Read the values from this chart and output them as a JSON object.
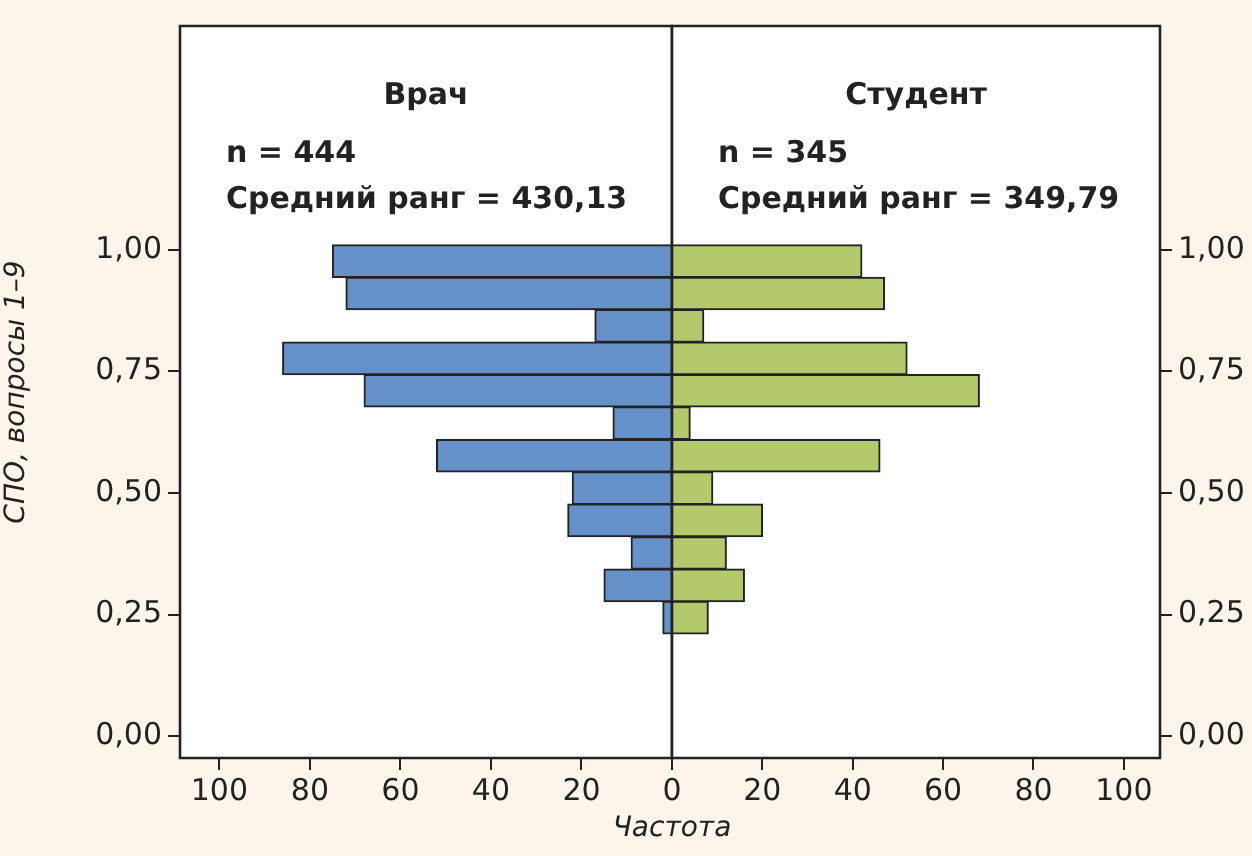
{
  "chart_data": [
    {
      "type": "histogram",
      "orientation": "horizontal",
      "title": "Врач",
      "annotations": [
        "n = 444",
        "Средний ранг = 430,13"
      ],
      "ylabel": "СПО, вопросы 1–9",
      "xlabel": "Частота",
      "bins": [
        0.21,
        0.277,
        0.343,
        0.41,
        0.477,
        0.543,
        0.61,
        0.677,
        0.743,
        0.81,
        0.877,
        0.943,
        1.01
      ],
      "values": [
        2,
        15,
        9,
        23,
        22,
        52,
        13,
        68,
        86,
        17,
        72,
        75
      ],
      "color": "#6690c8",
      "xlim": [
        108.7,
        0
      ],
      "xticks": [
        100,
        80,
        60,
        40,
        20,
        0
      ],
      "ylim": [
        -0.045,
        1.46
      ],
      "yticks": [
        {
          "value": 0,
          "label": "0,00"
        },
        {
          "value": 0.25,
          "label": "0,25"
        },
        {
          "value": 0.5,
          "label": "0,50"
        },
        {
          "value": 0.75,
          "label": "0,75"
        },
        {
          "value": 1,
          "label": "1,00"
        }
      ]
    },
    {
      "type": "histogram",
      "orientation": "horizontal",
      "title": "Студент",
      "annotations": [
        "n = 345",
        "Средний ранг = 349,79"
      ],
      "bins": [
        0.21,
        0.277,
        0.343,
        0.41,
        0.477,
        0.543,
        0.61,
        0.677,
        0.743,
        0.81,
        0.877,
        0.943,
        1.01
      ],
      "values": [
        8,
        16,
        12,
        20,
        9,
        46,
        4,
        68,
        52,
        7,
        47,
        42
      ],
      "color": "#b3c96b",
      "xlim": [
        0,
        108
      ],
      "xticks": [
        20,
        40,
        60,
        80,
        100
      ],
      "ylim": [
        -0.045,
        1.46
      ],
      "yticks": [
        {
          "value": 0,
          "label": "0,00"
        },
        {
          "value": 0.25,
          "label": "0,25"
        },
        {
          "value": 0.5,
          "label": "0,50"
        },
        {
          "value": 0.75,
          "label": "0,75"
        },
        {
          "value": 1,
          "label": "1,00"
        }
      ]
    }
  ]
}
